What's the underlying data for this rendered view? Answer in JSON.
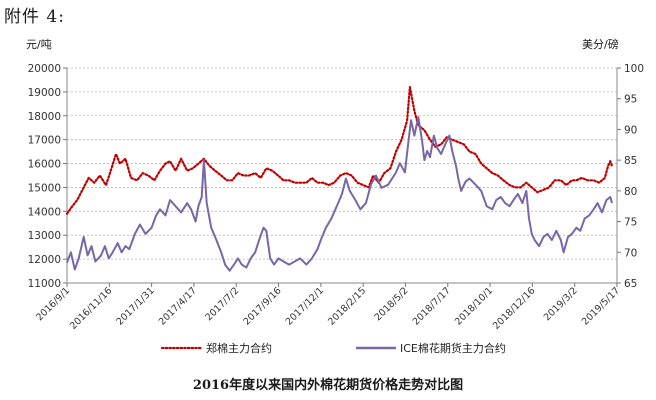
{
  "header": {
    "title": "附件 4:"
  },
  "caption": "2016年度以来国内外棉花期货价格走势对比图",
  "chart_data": {
    "type": "line",
    "title": "2016年度以来国内外棉花期货价格走势对比图",
    "y_left_label": "元/吨",
    "y_right_label": "美分/磅",
    "y_left_ylim": [
      11000,
      20000
    ],
    "y_left_ticks": [
      "11000",
      "12000",
      "13000",
      "14000",
      "15000",
      "16000",
      "17000",
      "18000",
      "19000",
      "20000"
    ],
    "y_right_ylim": [
      65,
      100
    ],
    "y_right_ticks": [
      "65",
      "70",
      "75",
      "80",
      "85",
      "90",
      "95",
      "100"
    ],
    "grid": true,
    "legend_position": "bottom",
    "x_range": [
      "2016-09-01",
      "2019-05-17"
    ],
    "x_ticks": [
      "2016/9/1",
      "2016/11/16",
      "2017/1/31",
      "2017/4/17",
      "2017/7/2",
      "2017/9/16",
      "2017/12/1",
      "2018/2/15",
      "2018/5/2",
      "2018/7/17",
      "2018/10/1",
      "2018/12/16",
      "2019/3/2",
      "2019/5/17"
    ],
    "series": [
      {
        "name": "郑棉主力合约",
        "axis": "left",
        "color": "#c00000",
        "style": "dotted",
        "points": [
          [
            "2016-09-01",
            13900
          ],
          [
            "2016-09-10",
            14200
          ],
          [
            "2016-09-20",
            14500
          ],
          [
            "2016-10-01",
            15000
          ],
          [
            "2016-10-10",
            15400
          ],
          [
            "2016-10-20",
            15200
          ],
          [
            "2016-10-30",
            15500
          ],
          [
            "2016-11-10",
            15100
          ],
          [
            "2016-11-20",
            15800
          ],
          [
            "2016-11-28",
            16400
          ],
          [
            "2016-12-05",
            16000
          ],
          [
            "2016-12-15",
            16200
          ],
          [
            "2016-12-25",
            15400
          ],
          [
            "2017-01-05",
            15300
          ],
          [
            "2017-01-15",
            15600
          ],
          [
            "2017-01-25",
            15500
          ],
          [
            "2017-02-05",
            15300
          ],
          [
            "2017-02-15",
            15700
          ],
          [
            "2017-02-25",
            16000
          ],
          [
            "2017-03-05",
            16100
          ],
          [
            "2017-03-15",
            15700
          ],
          [
            "2017-03-25",
            16200
          ],
          [
            "2017-04-05",
            15700
          ],
          [
            "2017-04-15",
            15800
          ],
          [
            "2017-04-25",
            16000
          ],
          [
            "2017-05-05",
            16200
          ],
          [
            "2017-05-15",
            15900
          ],
          [
            "2017-05-25",
            15700
          ],
          [
            "2017-06-05",
            15500
          ],
          [
            "2017-06-15",
            15300
          ],
          [
            "2017-06-25",
            15300
          ],
          [
            "2017-07-05",
            15600
          ],
          [
            "2017-07-15",
            15500
          ],
          [
            "2017-07-25",
            15500
          ],
          [
            "2017-08-05",
            15600
          ],
          [
            "2017-08-15",
            15400
          ],
          [
            "2017-08-25",
            15800
          ],
          [
            "2017-09-05",
            15700
          ],
          [
            "2017-09-15",
            15500
          ],
          [
            "2017-09-25",
            15300
          ],
          [
            "2017-10-05",
            15300
          ],
          [
            "2017-10-15",
            15200
          ],
          [
            "2017-10-25",
            15200
          ],
          [
            "2017-11-05",
            15200
          ],
          [
            "2017-11-15",
            15400
          ],
          [
            "2017-11-25",
            15200
          ],
          [
            "2017-12-05",
            15200
          ],
          [
            "2017-12-15",
            15100
          ],
          [
            "2017-12-25",
            15200
          ],
          [
            "2018-01-05",
            15500
          ],
          [
            "2018-01-15",
            15600
          ],
          [
            "2018-01-25",
            15500
          ],
          [
            "2018-02-05",
            15200
          ],
          [
            "2018-02-15",
            15100
          ],
          [
            "2018-02-25",
            15000
          ],
          [
            "2018-03-05",
            15500
          ],
          [
            "2018-03-15",
            15200
          ],
          [
            "2018-03-25",
            15600
          ],
          [
            "2018-04-05",
            15800
          ],
          [
            "2018-04-15",
            16500
          ],
          [
            "2018-04-25",
            17000
          ],
          [
            "2018-05-05",
            17800
          ],
          [
            "2018-05-10",
            19200
          ],
          [
            "2018-05-18",
            18200
          ],
          [
            "2018-05-25",
            17600
          ],
          [
            "2018-06-05",
            17400
          ],
          [
            "2018-06-15",
            17000
          ],
          [
            "2018-06-25",
            16700
          ],
          [
            "2018-07-05",
            16800
          ],
          [
            "2018-07-15",
            17100
          ],
          [
            "2018-07-25",
            17000
          ],
          [
            "2018-08-05",
            16900
          ],
          [
            "2018-08-15",
            16800
          ],
          [
            "2018-08-25",
            16500
          ],
          [
            "2018-09-05",
            16400
          ],
          [
            "2018-09-15",
            16000
          ],
          [
            "2018-09-25",
            15800
          ],
          [
            "2018-10-05",
            15600
          ],
          [
            "2018-10-15",
            15500
          ],
          [
            "2018-10-25",
            15300
          ],
          [
            "2018-11-05",
            15100
          ],
          [
            "2018-11-15",
            15000
          ],
          [
            "2018-11-25",
            15000
          ],
          [
            "2018-12-05",
            15200
          ],
          [
            "2018-12-15",
            15000
          ],
          [
            "2018-12-25",
            14800
          ],
          [
            "2019-01-05",
            14900
          ],
          [
            "2019-01-15",
            15000
          ],
          [
            "2019-01-25",
            15300
          ],
          [
            "2019-02-05",
            15300
          ],
          [
            "2019-02-15",
            15100
          ],
          [
            "2019-02-25",
            15300
          ],
          [
            "2019-03-05",
            15300
          ],
          [
            "2019-03-15",
            15400
          ],
          [
            "2019-03-25",
            15300
          ],
          [
            "2019-04-05",
            15300
          ],
          [
            "2019-04-15",
            15200
          ],
          [
            "2019-04-25",
            15400
          ],
          [
            "2019-05-01",
            15900
          ],
          [
            "2019-05-05",
            16100
          ],
          [
            "2019-05-08",
            15900
          ]
        ]
      },
      {
        "name": "ICE棉花期货主力合约",
        "axis": "right",
        "color": "#7767a6",
        "style": "solid",
        "points": [
          [
            "2016-09-01",
            68.3
          ],
          [
            "2016-09-08",
            70.0
          ],
          [
            "2016-09-15",
            67.2
          ],
          [
            "2016-09-22",
            69.0
          ],
          [
            "2016-10-01",
            72.5
          ],
          [
            "2016-10-08",
            69.5
          ],
          [
            "2016-10-15",
            71.0
          ],
          [
            "2016-10-22",
            68.5
          ],
          [
            "2016-11-01",
            69.5
          ],
          [
            "2016-11-08",
            71.0
          ],
          [
            "2016-11-15",
            69.0
          ],
          [
            "2016-11-22",
            70.0
          ],
          [
            "2016-12-01",
            71.5
          ],
          [
            "2016-12-08",
            70.0
          ],
          [
            "2016-12-15",
            71.0
          ],
          [
            "2016-12-22",
            70.5
          ],
          [
            "2017-01-01",
            73.0
          ],
          [
            "2017-01-10",
            74.5
          ],
          [
            "2017-01-20",
            73.0
          ],
          [
            "2017-01-31",
            74.0
          ],
          [
            "2017-02-08",
            76.0
          ],
          [
            "2017-02-15",
            77.0
          ],
          [
            "2017-02-25",
            76.0
          ],
          [
            "2017-03-05",
            78.5
          ],
          [
            "2017-03-15",
            77.5
          ],
          [
            "2017-03-25",
            76.5
          ],
          [
            "2017-04-05",
            78.0
          ],
          [
            "2017-04-12",
            77.0
          ],
          [
            "2017-04-20",
            75.0
          ],
          [
            "2017-04-25",
            77.5
          ],
          [
            "2017-05-01",
            79.0
          ],
          [
            "2017-05-05",
            85.0
          ],
          [
            "2017-05-10",
            78.0
          ],
          [
            "2017-05-18",
            74.0
          ],
          [
            "2017-05-25",
            72.5
          ],
          [
            "2017-06-05",
            70.0
          ],
          [
            "2017-06-12",
            68.0
          ],
          [
            "2017-06-20",
            67.0
          ],
          [
            "2017-06-28",
            68.0
          ],
          [
            "2017-07-05",
            69.0
          ],
          [
            "2017-07-12",
            68.0
          ],
          [
            "2017-07-20",
            67.5
          ],
          [
            "2017-07-28",
            69.0
          ],
          [
            "2017-08-05",
            70.0
          ],
          [
            "2017-08-12",
            72.0
          ],
          [
            "2017-08-20",
            74.0
          ],
          [
            "2017-08-25",
            73.5
          ],
          [
            "2017-09-01",
            69.0
          ],
          [
            "2017-09-08",
            68.0
          ],
          [
            "2017-09-16",
            69.0
          ],
          [
            "2017-09-25",
            68.5
          ],
          [
            "2017-10-05",
            68.0
          ],
          [
            "2017-10-15",
            68.5
          ],
          [
            "2017-10-25",
            69.0
          ],
          [
            "2017-11-05",
            68.0
          ],
          [
            "2017-11-15",
            69.0
          ],
          [
            "2017-11-25",
            70.5
          ],
          [
            "2017-12-01",
            72.0
          ],
          [
            "2017-12-10",
            74.0
          ],
          [
            "2017-12-20",
            75.5
          ],
          [
            "2018-01-01",
            78.0
          ],
          [
            "2018-01-08",
            79.5
          ],
          [
            "2018-01-15",
            82.0
          ],
          [
            "2018-01-22",
            80.0
          ],
          [
            "2018-02-01",
            78.5
          ],
          [
            "2018-02-10",
            77.0
          ],
          [
            "2018-02-20",
            78.0
          ],
          [
            "2018-03-01",
            81.0
          ],
          [
            "2018-03-10",
            82.5
          ],
          [
            "2018-03-20",
            80.5
          ],
          [
            "2018-04-01",
            81.0
          ],
          [
            "2018-04-08",
            82.0
          ],
          [
            "2018-04-15",
            83.0
          ],
          [
            "2018-04-22",
            84.5
          ],
          [
            "2018-05-01",
            83.0
          ],
          [
            "2018-05-06",
            87.0
          ],
          [
            "2018-05-12",
            91.5
          ],
          [
            "2018-05-18",
            89.0
          ],
          [
            "2018-05-25",
            92.0
          ],
          [
            "2018-06-01",
            88.0
          ],
          [
            "2018-06-05",
            85.0
          ],
          [
            "2018-06-10",
            86.5
          ],
          [
            "2018-06-15",
            85.5
          ],
          [
            "2018-06-22",
            89.0
          ],
          [
            "2018-06-28",
            87.0
          ],
          [
            "2018-07-05",
            86.0
          ],
          [
            "2018-07-12",
            87.5
          ],
          [
            "2018-07-20",
            89.0
          ],
          [
            "2018-07-25",
            86.5
          ],
          [
            "2018-08-01",
            84.0
          ],
          [
            "2018-08-05",
            82.0
          ],
          [
            "2018-08-10",
            80.0
          ],
          [
            "2018-08-18",
            81.5
          ],
          [
            "2018-08-25",
            82.0
          ],
          [
            "2018-09-05",
            81.0
          ],
          [
            "2018-09-15",
            80.0
          ],
          [
            "2018-09-25",
            77.5
          ],
          [
            "2018-10-05",
            77.0
          ],
          [
            "2018-10-12",
            78.5
          ],
          [
            "2018-10-20",
            79.0
          ],
          [
            "2018-10-28",
            78.0
          ],
          [
            "2018-11-05",
            77.5
          ],
          [
            "2018-11-12",
            78.5
          ],
          [
            "2018-11-20",
            79.5
          ],
          [
            "2018-11-28",
            78.0
          ],
          [
            "2018-12-05",
            80.0
          ],
          [
            "2018-12-10",
            75.5
          ],
          [
            "2018-12-15",
            73.0
          ],
          [
            "2018-12-20",
            72.0
          ],
          [
            "2018-12-28",
            71.0
          ],
          [
            "2019-01-05",
            72.5
          ],
          [
            "2019-01-12",
            73.0
          ],
          [
            "2019-01-20",
            72.0
          ],
          [
            "2019-01-28",
            73.5
          ],
          [
            "2019-02-05",
            72.0
          ],
          [
            "2019-02-10",
            70.0
          ],
          [
            "2019-02-18",
            72.5
          ],
          [
            "2019-02-25",
            73.0
          ],
          [
            "2019-03-05",
            74.0
          ],
          [
            "2019-03-12",
            73.5
          ],
          [
            "2019-03-20",
            75.5
          ],
          [
            "2019-03-28",
            76.0
          ],
          [
            "2019-04-05",
            77.0
          ],
          [
            "2019-04-12",
            78.0
          ],
          [
            "2019-04-20",
            76.5
          ],
          [
            "2019-04-28",
            78.5
          ],
          [
            "2019-05-05",
            79.0
          ],
          [
            "2019-05-08",
            78.0
          ]
        ]
      }
    ]
  }
}
